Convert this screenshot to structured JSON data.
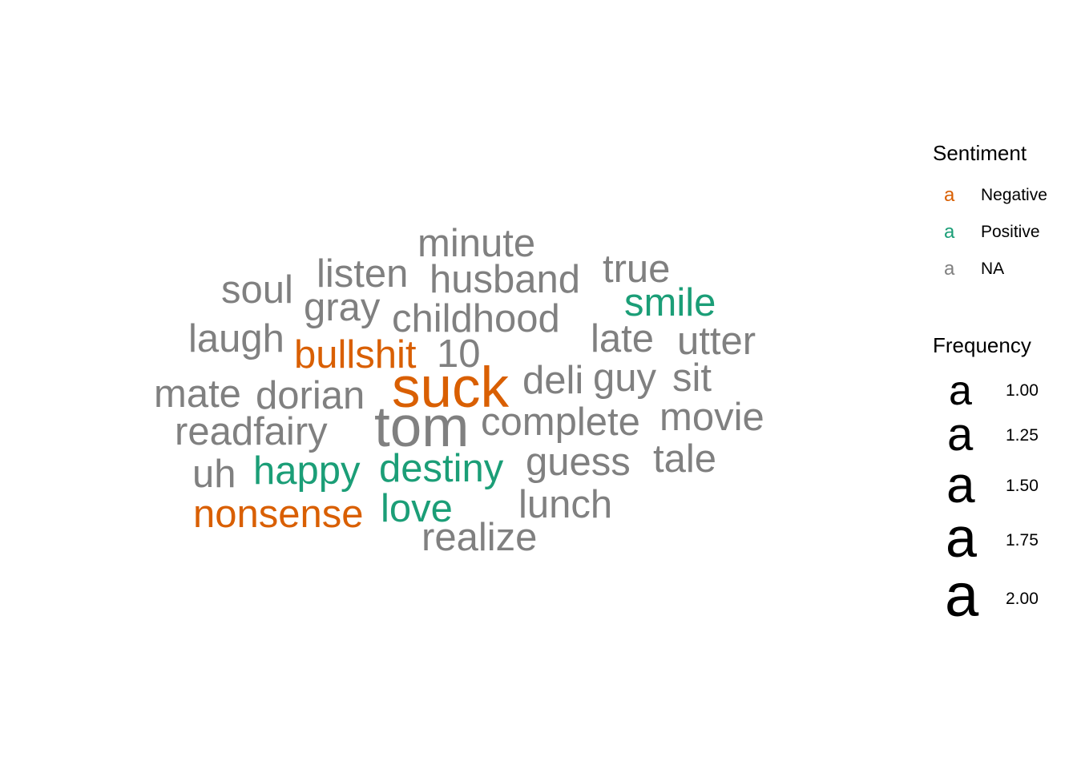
{
  "chart_data": {
    "type": "wordcloud",
    "colors": {
      "Negative": "#D95F02",
      "Positive": "#1B9E77",
      "NA": "#808080"
    },
    "words": [
      {
        "word": "suck",
        "frequency": 2,
        "sentiment": "Negative"
      },
      {
        "word": "tom",
        "frequency": 2,
        "sentiment": "NA"
      },
      {
        "word": "minute",
        "frequency": 1,
        "sentiment": "NA"
      },
      {
        "word": "listen",
        "frequency": 1,
        "sentiment": "NA"
      },
      {
        "word": "husband",
        "frequency": 1,
        "sentiment": "NA"
      },
      {
        "word": "true",
        "frequency": 1,
        "sentiment": "NA"
      },
      {
        "word": "soul",
        "frequency": 1,
        "sentiment": "NA"
      },
      {
        "word": "gray",
        "frequency": 1,
        "sentiment": "NA"
      },
      {
        "word": "smile",
        "frequency": 1,
        "sentiment": "Positive"
      },
      {
        "word": "childhood",
        "frequency": 1,
        "sentiment": "NA"
      },
      {
        "word": "laugh",
        "frequency": 1,
        "sentiment": "NA"
      },
      {
        "word": "late",
        "frequency": 1,
        "sentiment": "NA"
      },
      {
        "word": "utter",
        "frequency": 1,
        "sentiment": "NA"
      },
      {
        "word": "bullshit",
        "frequency": 1,
        "sentiment": "Negative"
      },
      {
        "word": "10",
        "frequency": 1,
        "sentiment": "NA"
      },
      {
        "word": "deli",
        "frequency": 1,
        "sentiment": "NA"
      },
      {
        "word": "guy",
        "frequency": 1,
        "sentiment": "NA"
      },
      {
        "word": "sit",
        "frequency": 1,
        "sentiment": "NA"
      },
      {
        "word": "mate",
        "frequency": 1,
        "sentiment": "NA"
      },
      {
        "word": "dorian",
        "frequency": 1,
        "sentiment": "NA"
      },
      {
        "word": "complete",
        "frequency": 1,
        "sentiment": "NA"
      },
      {
        "word": "movie",
        "frequency": 1,
        "sentiment": "NA"
      },
      {
        "word": "readfairy",
        "frequency": 1,
        "sentiment": "NA"
      },
      {
        "word": "uh",
        "frequency": 1,
        "sentiment": "NA"
      },
      {
        "word": "happy",
        "frequency": 1,
        "sentiment": "Positive"
      },
      {
        "word": "destiny",
        "frequency": 1,
        "sentiment": "Positive"
      },
      {
        "word": "guess",
        "frequency": 1,
        "sentiment": "NA"
      },
      {
        "word": "tale",
        "frequency": 1,
        "sentiment": "NA"
      },
      {
        "word": "nonsense",
        "frequency": 1,
        "sentiment": "Negative"
      },
      {
        "word": "love",
        "frequency": 1,
        "sentiment": "Positive"
      },
      {
        "word": "lunch",
        "frequency": 1,
        "sentiment": "NA"
      },
      {
        "word": "realize",
        "frequency": 1,
        "sentiment": "NA"
      }
    ],
    "legend": {
      "color": {
        "title": "Sentiment",
        "key_glyph": "a",
        "items": [
          {
            "label": "Negative",
            "sentiment": "Negative"
          },
          {
            "label": "Positive",
            "sentiment": "Positive"
          },
          {
            "label": "NA",
            "sentiment": "NA"
          }
        ]
      },
      "size": {
        "title": "Frequency",
        "key_glyph": "a",
        "breaks": [
          "1.00",
          "1.25",
          "1.50",
          "1.75",
          "2.00"
        ]
      },
      "placement": "right"
    }
  }
}
